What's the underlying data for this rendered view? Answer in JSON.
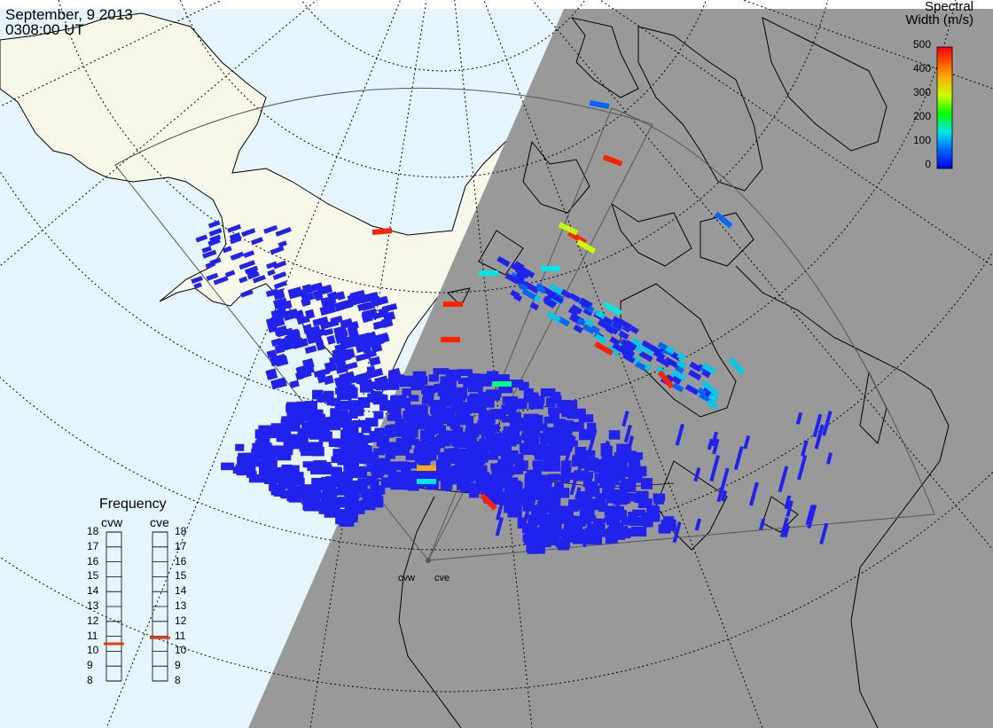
{
  "header": {
    "date": "September, 9 2013",
    "time": "0308:00 UT"
  },
  "colorbar": {
    "title_line1": "Spectral",
    "title_line2": "Width (m/s)",
    "ticks": [
      "500",
      "400",
      "300",
      "200",
      "100",
      "0"
    ],
    "colors": [
      "#ff0000",
      "#ffaa00",
      "#c8ff00",
      "#00ff00",
      "#00e6e6",
      "#0064ff",
      "#0000e6"
    ]
  },
  "frequency_panel": {
    "title": "Frequency",
    "radars": [
      {
        "name": "cvw",
        "freq_mhz": 10.5
      },
      {
        "name": "cve",
        "freq_mhz": 10.9
      }
    ],
    "ticks": [
      "18",
      "17",
      "16",
      "15",
      "14",
      "13",
      "12",
      "11",
      "10",
      "9",
      "8"
    ],
    "range_mhz": [
      8,
      18
    ],
    "marker_color": "#e04010"
  },
  "sites": [
    {
      "name": "cvw"
    },
    {
      "name": "cve"
    }
  ],
  "colors": {
    "ocean": "#e6f5fc",
    "night_land": "#999999",
    "day_land": "#f7f7ea",
    "scatter_primary": "#2222ee"
  }
}
